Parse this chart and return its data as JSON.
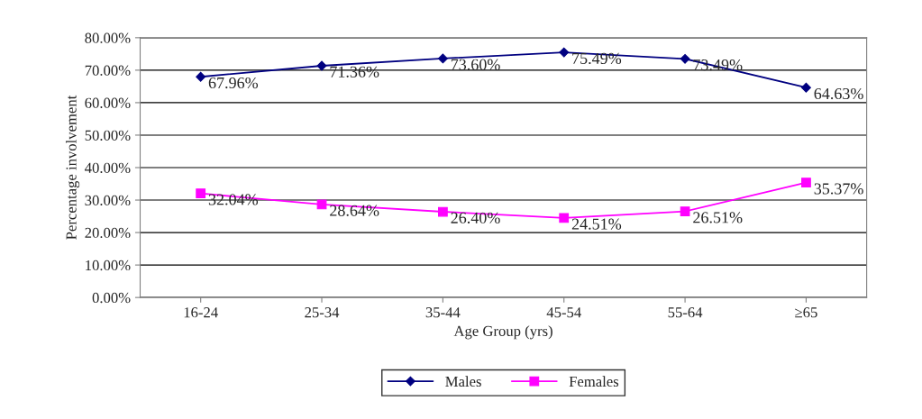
{
  "chart_data": {
    "type": "line",
    "xlabel": "Age Group (yrs)",
    "ylabel": "Percentage involvement",
    "categories": [
      "16-24",
      "25-34",
      "35-44",
      "45-54",
      "55-64",
      "≥65"
    ],
    "series": [
      {
        "name": "Males",
        "color": "#000080",
        "marker": "diamond",
        "values": [
          67.96,
          71.36,
          73.6,
          75.49,
          73.49,
          64.63
        ],
        "value_labels": [
          "67.96%",
          "71.36%",
          "73.60%",
          "75.49%",
          "73.49%",
          "64.63%"
        ]
      },
      {
        "name": "Females",
        "color": "#ff00ff",
        "marker": "square",
        "values": [
          32.04,
          28.64,
          26.4,
          24.51,
          26.51,
          35.37
        ],
        "value_labels": [
          "32.04%",
          "28.64%",
          "26.40%",
          "24.51%",
          "26.51%",
          "35.37%"
        ]
      }
    ],
    "ylim": [
      0,
      80
    ],
    "yticks": [
      {
        "value": 0,
        "label": "0.00%"
      },
      {
        "value": 10,
        "label": "10.00%"
      },
      {
        "value": 20,
        "label": "20.00%"
      },
      {
        "value": 30,
        "label": "30.00%"
      },
      {
        "value": 40,
        "label": "40.00%"
      },
      {
        "value": 50,
        "label": "50.00%"
      },
      {
        "value": 60,
        "label": "60.00%"
      },
      {
        "value": 70,
        "label": "70.00%"
      },
      {
        "value": 80,
        "label": "80.00%"
      }
    ],
    "grid": "y",
    "legend": "bottom",
    "line_style": "solid"
  }
}
